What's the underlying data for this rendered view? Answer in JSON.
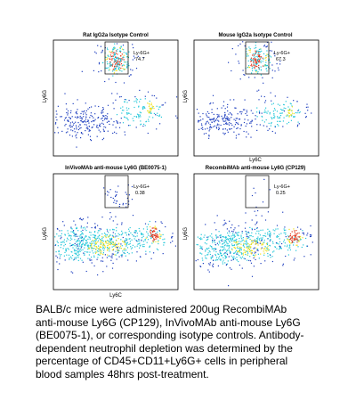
{
  "chart_data": [
    {
      "type": "scatter",
      "title": "Rat IgG2a Isotype Control",
      "xlabel": "",
      "ylabel": "Ly6G",
      "gate": {
        "label": "Ly-6G+",
        "value": "74.7"
      },
      "populations": [
        "Ly6G+ Ly6C-int neutrophils (dense, inside gate)",
        "Ly6G- Ly6C-lo/hi monocytes/lymphocytes"
      ]
    },
    {
      "type": "scatter",
      "title": "Mouse IgG2a Isotype Control",
      "xlabel": "Ly6C",
      "ylabel": "Ly6G",
      "gate": {
        "label": "Ly-6G+",
        "value": "67.3"
      },
      "populations": [
        "Ly6G+ Ly6C-int neutrophils (dense, inside gate)",
        "Ly6G- Ly6C-lo/hi monocytes/lymphocytes"
      ]
    },
    {
      "type": "scatter",
      "title": "InVivoMAb anti-mouse Ly6G (BE0075-1)",
      "xlabel": "Ly6C",
      "ylabel": "Ly6G",
      "gate": {
        "label": "Ly-6G+",
        "value": "0.38"
      },
      "populations": [
        "Sparse residual Ly6G+ events",
        "Dense Ly6G- band with Ly6C-hi hotspot"
      ]
    },
    {
      "type": "scatter",
      "title": "RecombiMAb anti-mouse Ly6G (CP129)",
      "xlabel": "",
      "ylabel": "Ly6G",
      "gate": {
        "label": "Ly-6G+",
        "value": "0.25"
      },
      "populations": [
        "Very sparse residual Ly6G+ events",
        "Dense Ly6G- band with Ly6C-hi hotspot"
      ]
    }
  ],
  "caption": {
    "lines": [
      "BALB/c mice were administered 200ug RecombiMAb",
      "anti-mouse Ly6G (CP129),  InVivoMAb anti-mouse Ly6G",
      "(BE0075-1), or corresponding isotype controls. Antibody-",
      "dependent neutrophil depletion was determined by the",
      "percentage of CD45+CD11+Ly6G+ cells in peripheral",
      "blood samples 48hrs post-treatment."
    ]
  },
  "colors": {
    "density_low": "#1f3fbf",
    "density_mid": "#23c7d9",
    "density_high": "#f2e21a",
    "density_peak": "#e2331a",
    "frame": "#000000"
  }
}
